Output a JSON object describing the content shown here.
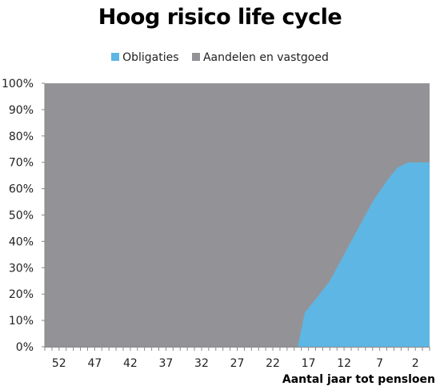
{
  "colors": {
    "obligaties": "#5eb6e4",
    "aandelen": "#939397"
  },
  "chart_data": {
    "type": "area",
    "stacked": "percent",
    "title": "Hoog risico life cycle",
    "xlabel": "Aantal jaar tot pensloen",
    "ylabel": "",
    "x_reversed": true,
    "xlim": [
      54,
      0
    ],
    "ylim": [
      0,
      100
    ],
    "y_ticks": [
      "0%",
      "10%",
      "20%",
      "30%",
      "40%",
      "50%",
      "60%",
      "70%",
      "80%",
      "90%",
      "100%"
    ],
    "x_ticks": [
      "52",
      "47",
      "42",
      "37",
      "32",
      "27",
      "22",
      "17",
      "12",
      "7",
      "2"
    ],
    "x_tick_values": [
      52,
      47,
      42,
      37,
      32,
      27,
      22,
      17,
      12,
      7,
      2
    ],
    "legend_position": "top",
    "series": [
      {
        "name": "Obligaties",
        "x": [
          54,
          20,
          18.5,
          17.5,
          16,
          14,
          12,
          10,
          8,
          6,
          4.5,
          3,
          2,
          0
        ],
        "values": [
          0,
          0,
          0,
          13,
          18,
          25,
          35,
          45,
          55,
          63,
          68,
          70,
          70,
          70
        ]
      },
      {
        "name": "Aandelen en vastgoed",
        "x": [
          54,
          20,
          18.5,
          17.5,
          16,
          14,
          12,
          10,
          8,
          6,
          4.5,
          3,
          2,
          0
        ],
        "values": [
          100,
          100,
          100,
          87,
          82,
          75,
          65,
          55,
          45,
          37,
          32,
          30,
          30,
          30
        ]
      }
    ]
  }
}
